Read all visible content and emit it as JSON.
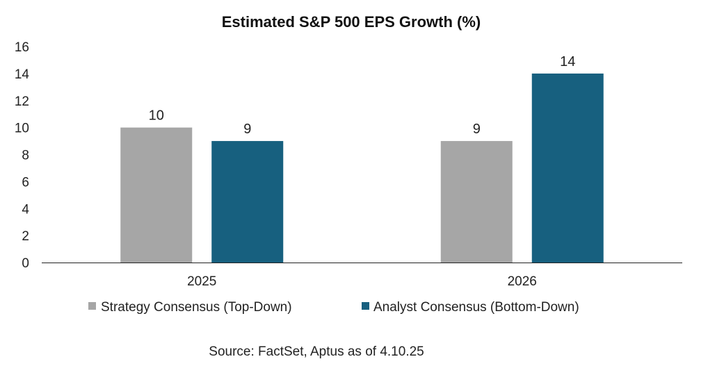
{
  "chart_data": {
    "type": "bar",
    "title": "Estimated S&P 500 EPS Growth (%)",
    "categories": [
      "2025",
      "2026"
    ],
    "series": [
      {
        "name": "Strategy Consensus (Top-Down)",
        "values": [
          10,
          9
        ],
        "color": "#a6a6a6"
      },
      {
        "name": "Analyst Consensus (Bottom-Down)",
        "values": [
          9,
          14
        ],
        "color": "#17607f"
      }
    ],
    "ylim": [
      0,
      16
    ],
    "yticks": [
      0,
      2,
      4,
      6,
      8,
      10,
      12,
      14,
      16
    ],
    "grid": false,
    "legend_position": "bottom",
    "source": "Source: FactSet, Aptus as of 4.10.25"
  }
}
